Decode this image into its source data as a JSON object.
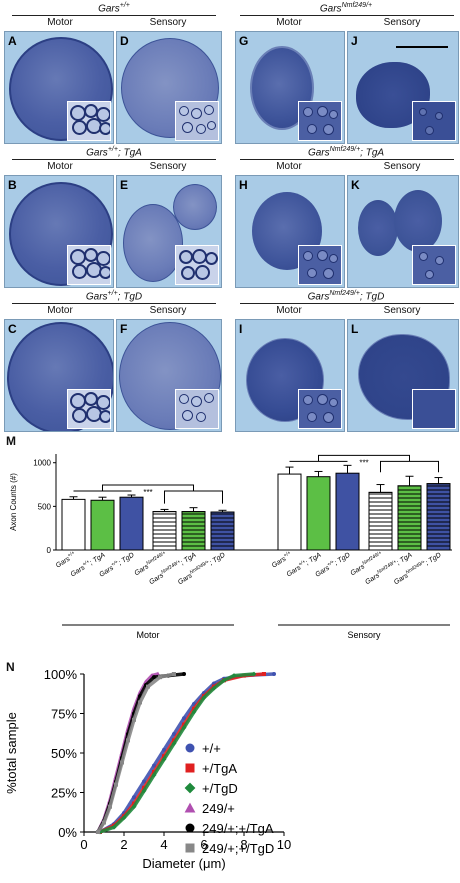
{
  "figure": {
    "groups": [
      {
        "title": "Gars",
        "sup": "+/+",
        "rest": ""
      },
      {
        "title": "Gars",
        "sup": "Nmf249/+",
        "rest": ""
      },
      {
        "title": "Gars",
        "sup": "+/+",
        "rest": "; TgA"
      },
      {
        "title": "Gars",
        "sup": "Nmf249/+",
        "rest": "; TgA"
      },
      {
        "title": "Gars",
        "sup": "+/+",
        "rest": "; TgD"
      },
      {
        "title": "Gars",
        "sup": "Nmf249/+",
        "rest": "; TgD"
      }
    ],
    "sub_motor": "Motor",
    "sub_sensory": "Sensory",
    "panels": [
      "A",
      "D",
      "G",
      "J",
      "B",
      "E",
      "H",
      "K",
      "C",
      "F",
      "I",
      "L"
    ],
    "colors": {
      "bg": "#a9cbe6",
      "tissue": "#3c5397",
      "tissue_dark": "#2c3f84"
    }
  },
  "chart_data": [
    {
      "panel": "M",
      "type": "bar",
      "ylabel": "Axon Counts (#)",
      "yticks": [
        0,
        500,
        1000
      ],
      "ylim": [
        0,
        1100
      ],
      "categories": [
        "Gars+/+",
        "Gars+/+; TgA",
        "Gars+/+; TgD",
        "GarsNmf249/+",
        "GarsNmf249/+; TgA",
        "GarsNmf249/+; TgD"
      ],
      "category_parts": [
        {
          "base": "Gars",
          "sup": "+/+",
          "rest": ""
        },
        {
          "base": "Gars",
          "sup": "+/+",
          "rest": "; TgA"
        },
        {
          "base": "Gars",
          "sup": "+/+",
          "rest": "; TgD"
        },
        {
          "base": "Gars",
          "sup": "Nmf249/+",
          "rest": ""
        },
        {
          "base": "Gars",
          "sup": "Nmf249/+",
          "rest": "; TgA"
        },
        {
          "base": "Gars",
          "sup": "Nmf249/+",
          "rest": "; TgD"
        }
      ],
      "groups": [
        {
          "name": "Motor",
          "values": [
            580,
            570,
            605,
            440,
            440,
            435
          ],
          "errors": [
            30,
            35,
            25,
            25,
            45,
            20
          ]
        },
        {
          "name": "Sensory",
          "values": [
            870,
            840,
            880,
            660,
            735,
            760
          ],
          "errors": [
            80,
            60,
            90,
            90,
            110,
            70
          ]
        }
      ],
      "bar_fill": [
        "#ffffff",
        "#5cbf45",
        "#3f52a3",
        "#ffffff",
        "#5cbf45",
        "#3f52a3"
      ],
      "bar_hatched": [
        false,
        false,
        false,
        true,
        true,
        true
      ],
      "significance": "***"
    },
    {
      "panel": "N",
      "type": "scatter",
      "xlabel": "Diameter (μm)",
      "ylabel": "%total sample",
      "xticks": [
        0,
        2,
        4,
        6,
        8,
        10
      ],
      "yticks": [
        "0%",
        "25%",
        "50%",
        "75%",
        "100%"
      ],
      "xlim": [
        0,
        10
      ],
      "ylim": [
        0,
        100
      ],
      "series": [
        {
          "name": "+/+",
          "color": "#3f52b0",
          "shape": "circle",
          "x": [
            0.8,
            1.5,
            2.0,
            2.5,
            3.0,
            3.5,
            4.0,
            4.5,
            5.0,
            5.5,
            6.0,
            6.5,
            7.0,
            8.0,
            9.5
          ],
          "y": [
            0,
            5,
            12,
            22,
            32,
            42,
            52,
            62,
            72,
            81,
            88,
            94,
            97,
            99,
            100
          ]
        },
        {
          "name": "+/TgA",
          "color": "#e02020",
          "shape": "square",
          "x": [
            0.8,
            1.5,
            2.0,
            2.5,
            3.0,
            3.5,
            4.0,
            4.5,
            5.0,
            5.5,
            6.0,
            6.5,
            7.0,
            8.0,
            9.0
          ],
          "y": [
            0,
            4,
            10,
            18,
            28,
            38,
            48,
            58,
            68,
            78,
            86,
            92,
            96,
            99,
            100
          ]
        },
        {
          "name": "+/TgD",
          "color": "#1f8a3c",
          "shape": "diamond",
          "x": [
            0.8,
            1.5,
            2.0,
            2.5,
            3.0,
            3.5,
            4.0,
            4.5,
            5.0,
            5.5,
            6.0,
            6.5,
            7.0,
            7.5,
            8.5
          ],
          "y": [
            0,
            3,
            9,
            16,
            26,
            36,
            46,
            56,
            66,
            76,
            85,
            91,
            96,
            99,
            100
          ]
        },
        {
          "name": "249/+",
          "color": "#b04fb0",
          "shape": "triangle",
          "x": [
            0.7,
            1.0,
            1.3,
            1.6,
            1.9,
            2.2,
            2.5,
            2.8,
            3.1,
            3.4,
            3.7
          ],
          "y": [
            0,
            8,
            20,
            35,
            50,
            65,
            78,
            88,
            95,
            99,
            100
          ]
        },
        {
          "name": "249/+;+/TgA",
          "color": "#000000",
          "shape": "circle",
          "x": [
            0.7,
            1.0,
            1.3,
            1.6,
            1.9,
            2.2,
            2.5,
            2.8,
            3.1,
            3.5,
            4.2,
            5.0
          ],
          "y": [
            0,
            7,
            18,
            32,
            47,
            62,
            75,
            86,
            93,
            98,
            99,
            100
          ]
        },
        {
          "name": "249/+;+/TgD",
          "color": "#888888",
          "shape": "square",
          "x": [
            0.7,
            1.0,
            1.3,
            1.6,
            1.9,
            2.2,
            2.5,
            2.8,
            3.2,
            3.8,
            4.5
          ],
          "y": [
            0,
            6,
            16,
            30,
            44,
            58,
            71,
            82,
            92,
            98,
            100
          ]
        }
      ]
    }
  ]
}
